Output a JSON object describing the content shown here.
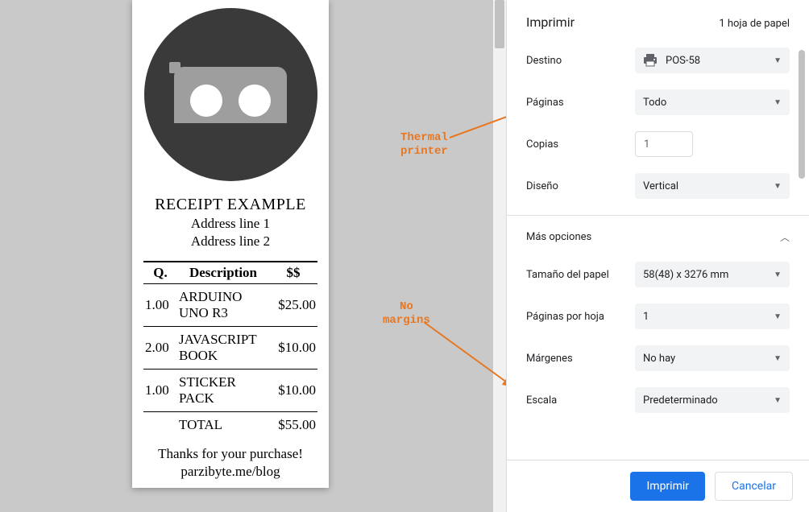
{
  "preview": {
    "receipt": {
      "title": "RECEIPT EXAMPLE",
      "address1": "Address line 1",
      "address2": "Address line 2",
      "columns": {
        "qty": "Q.",
        "desc": "Description",
        "price": "$$"
      },
      "rows": [
        {
          "qty": "1.00",
          "desc": "ARDUINO UNO R3",
          "price": "$25.00"
        },
        {
          "qty": "2.00",
          "desc": "JAVASCRIPT BOOK",
          "price": "$10.00"
        },
        {
          "qty": "1.00",
          "desc": "STICKER PACK",
          "price": "$10.00"
        }
      ],
      "total_label": "TOTAL",
      "total_value": "$55.00",
      "thanks": "Thanks for your purchase!",
      "blog": "parzibyte.me/blog",
      "logo_bg": "#3a3a3a",
      "logo_fg": "#9e9e9e",
      "logo_hole": "#ffffff"
    }
  },
  "annotations": {
    "thermal": {
      "line1": "Thermal",
      "line2": "printer",
      "color": "#e87722"
    },
    "nomargins": {
      "line1": "No",
      "line2": "margins",
      "color": "#e87722"
    }
  },
  "panel": {
    "title": "Imprimir",
    "sheet_count": "1 hoja de papel",
    "destination": {
      "label": "Destino",
      "value": "POS-58"
    },
    "pages": {
      "label": "Páginas",
      "value": "Todo"
    },
    "copies": {
      "label": "Copias",
      "value": "1"
    },
    "layout": {
      "label": "Diseño",
      "value": "Vertical"
    },
    "more": "Más opciones",
    "paper": {
      "label": "Tamaño del papel",
      "value": "58(48) x 3276 mm"
    },
    "per_sheet": {
      "label": "Páginas por hoja",
      "value": "1"
    },
    "margins": {
      "label": "Márgenes",
      "value": "No hay"
    },
    "scale": {
      "label": "Escala",
      "value": "Predeterminado"
    }
  },
  "buttons": {
    "print": "Imprimir",
    "cancel": "Cancelar"
  },
  "colors": {
    "preview_bg": "#c9c9c9",
    "panel_bg": "#ffffff",
    "select_bg": "#f1f3f4",
    "border": "#dadce0",
    "primary": "#1a73e8",
    "text": "#202124",
    "muted": "#5f6368",
    "scroll_thumb": "#c1c1c1"
  }
}
